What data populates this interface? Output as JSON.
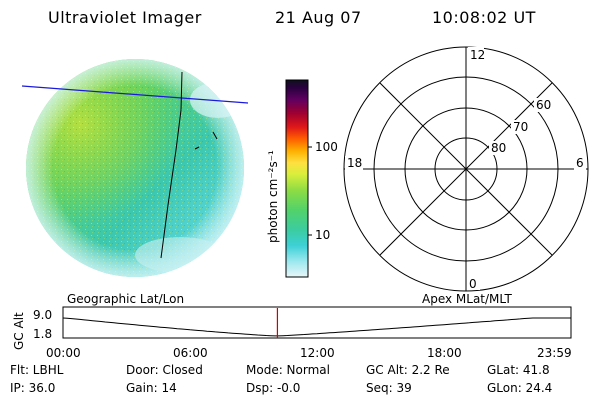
{
  "header": {
    "instrument": "Ultraviolet Imager",
    "date": "21 Aug 07",
    "time": "10:08:02 UT"
  },
  "colorbar": {
    "unit_label": "photon cm⁻²s⁻¹",
    "ticks": [
      "100",
      "10"
    ]
  },
  "polar_plot": {
    "mlt_labels": [
      "12",
      "18",
      "6",
      "0"
    ],
    "lat_labels": [
      "60",
      "70",
      "80"
    ]
  },
  "altitude_panel": {
    "ylabel": "GC Alt",
    "yticks": [
      "9.0",
      "1.8"
    ],
    "left_title": "Geographic Lat/Lon",
    "right_title": "Apex MLat/MLT",
    "xticks": [
      "00:00",
      "06:00",
      "12:00",
      "18:00",
      "23:59"
    ],
    "current_time_hours": 10.13
  },
  "footer": {
    "row1": [
      "Flt: LBHL",
      "Door: Closed",
      "Mode: Normal",
      "GC Alt: 2.2 Re",
      "GLat:  41.8"
    ],
    "row2": [
      "IP: 36.0",
      "Gain: 14",
      "Dsp:   -0.0",
      "Seq: 39",
      "GLon:  24.4"
    ]
  },
  "colors": {
    "geo_line": "#1a1adc",
    "time_marker": "#d00000"
  }
}
